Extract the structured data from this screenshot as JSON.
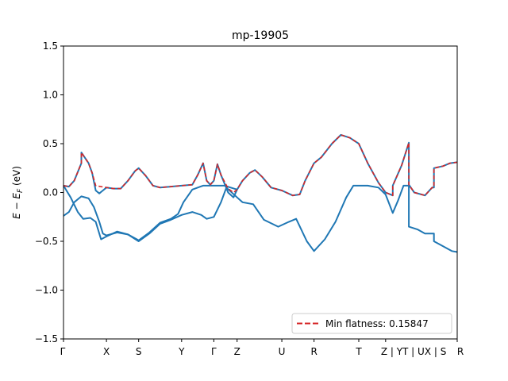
{
  "chart_data": {
    "type": "line",
    "title": "mp-19905",
    "xlabel": "",
    "ylabel": "E − E_F (eV)",
    "ylabel_main": "E − E",
    "ylabel_sub": "F",
    "ylabel_unit": " (eV)",
    "ylim": [
      -1.5,
      1.5
    ],
    "xlim": [
      0,
      11.0
    ],
    "yticks": [
      -1.5,
      -1.0,
      -0.5,
      0.0,
      0.5,
      1.0,
      1.5
    ],
    "ytick_labels": [
      "−1.5",
      "−1.0",
      "−0.5",
      "0.0",
      "0.5",
      "1.0",
      "1.5"
    ],
    "xticks": [
      {
        "x": 0.0,
        "label": "Γ"
      },
      {
        "x": 1.2,
        "label": "X"
      },
      {
        "x": 2.1,
        "label": "S"
      },
      {
        "x": 3.3,
        "label": "Y"
      },
      {
        "x": 4.2,
        "label": "Γ"
      },
      {
        "x": 4.85,
        "label": "Z"
      },
      {
        "x": 6.1,
        "label": "U"
      },
      {
        "x": 7.0,
        "label": "R"
      },
      {
        "x": 8.25,
        "label": "T"
      },
      {
        "x": 9.0,
        "label": "Z | YT | UX | S"
      },
      {
        "x": 11.0,
        "label": "R"
      }
    ],
    "series": [
      {
        "name": "",
        "color": "#1f77b4",
        "style": "solid",
        "points": [
          [
            0,
            0.07
          ],
          [
            0.15,
            0.06
          ],
          [
            0.3,
            0.12
          ],
          [
            0.5,
            0.3
          ],
          [
            0.5,
            0.41
          ],
          [
            0.7,
            0.3
          ],
          [
            0.8,
            0.2
          ],
          [
            0.9,
            0.02
          ],
          [
            1.0,
            -0.01
          ],
          [
            1.1,
            0.02
          ],
          [
            1.2,
            0.05
          ],
          [
            1.4,
            0.04
          ],
          [
            1.6,
            0.04
          ],
          [
            1.8,
            0.12
          ],
          [
            2.0,
            0.22
          ],
          [
            2.1,
            0.25
          ],
          [
            2.3,
            0.17
          ],
          [
            2.5,
            0.07
          ],
          [
            2.7,
            0.05
          ],
          [
            3.0,
            0.06
          ],
          [
            3.3,
            0.07
          ],
          [
            3.6,
            0.08
          ],
          [
            3.75,
            0.18
          ],
          [
            3.9,
            0.3
          ],
          [
            4.0,
            0.12
          ],
          [
            4.1,
            0.08
          ],
          [
            4.2,
            0.12
          ],
          [
            4.3,
            0.29
          ],
          [
            4.4,
            0.18
          ],
          [
            4.6,
            0.0
          ],
          [
            4.75,
            -0.05
          ],
          [
            4.85,
            0.03
          ],
          [
            5.0,
            0.12
          ],
          [
            5.2,
            0.2
          ],
          [
            5.35,
            0.23
          ],
          [
            5.55,
            0.16
          ],
          [
            5.8,
            0.05
          ],
          [
            6.1,
            0.02
          ],
          [
            6.4,
            -0.03
          ],
          [
            6.6,
            -0.02
          ],
          [
            6.75,
            0.12
          ],
          [
            7.0,
            0.3
          ],
          [
            7.2,
            0.36
          ],
          [
            7.5,
            0.5
          ],
          [
            7.75,
            0.59
          ],
          [
            8.0,
            0.56
          ],
          [
            8.25,
            0.5
          ],
          [
            8.5,
            0.3
          ],
          [
            8.8,
            0.1
          ],
          [
            9.0,
            0.0
          ],
          [
            9.2,
            -0.03
          ],
          [
            9.2,
            0.07
          ],
          [
            9.45,
            0.28
          ],
          [
            9.65,
            0.51
          ],
          [
            9.65,
            0.08
          ],
          [
            9.8,
            0.0
          ],
          [
            10.1,
            -0.03
          ],
          [
            10.3,
            0.05
          ],
          [
            10.35,
            0.05
          ],
          [
            10.35,
            0.25
          ],
          [
            10.6,
            0.27
          ],
          [
            10.8,
            0.3
          ],
          [
            11.0,
            0.31
          ]
        ]
      },
      {
        "name": "",
        "color": "#1f77b4",
        "style": "solid",
        "points": [
          [
            0,
            0.07
          ],
          [
            0.2,
            -0.05
          ],
          [
            0.4,
            -0.2
          ],
          [
            0.55,
            -0.27
          ],
          [
            0.75,
            -0.26
          ],
          [
            0.9,
            -0.3
          ],
          [
            1.05,
            -0.48
          ],
          [
            1.2,
            -0.45
          ],
          [
            1.5,
            -0.4
          ],
          [
            1.8,
            -0.43
          ],
          [
            2.1,
            -0.5
          ],
          [
            2.4,
            -0.42
          ],
          [
            2.7,
            -0.32
          ],
          [
            3.0,
            -0.28
          ],
          [
            3.3,
            -0.23
          ],
          [
            3.6,
            -0.2
          ],
          [
            3.85,
            -0.23
          ],
          [
            4.0,
            -0.27
          ],
          [
            4.2,
            -0.25
          ],
          [
            4.4,
            -0.1
          ],
          [
            4.55,
            0.05
          ],
          [
            4.85,
            -0.05
          ],
          [
            5.0,
            -0.1
          ],
          [
            5.3,
            -0.12
          ],
          [
            5.6,
            -0.28
          ],
          [
            6.0,
            -0.35
          ],
          [
            6.3,
            -0.3
          ],
          [
            6.5,
            -0.27
          ],
          [
            6.8,
            -0.5
          ],
          [
            7.0,
            -0.6
          ],
          [
            7.3,
            -0.48
          ],
          [
            7.6,
            -0.3
          ],
          [
            7.9,
            -0.05
          ],
          [
            8.1,
            0.07
          ],
          [
            8.5,
            0.07
          ],
          [
            8.8,
            0.05
          ],
          [
            9.0,
            -0.02
          ],
          [
            9.2,
            -0.21
          ],
          [
            9.35,
            -0.08
          ],
          [
            9.5,
            0.07
          ],
          [
            9.65,
            0.07
          ],
          [
            9.65,
            -0.35
          ],
          [
            9.9,
            -0.38
          ],
          [
            10.1,
            -0.42
          ],
          [
            10.35,
            -0.42
          ],
          [
            10.35,
            -0.5
          ],
          [
            10.6,
            -0.55
          ],
          [
            10.85,
            -0.6
          ],
          [
            11.0,
            -0.61
          ]
        ]
      },
      {
        "name": "",
        "color": "#1f77b4",
        "style": "solid",
        "points": [
          [
            0,
            -0.24
          ],
          [
            0.15,
            -0.2
          ],
          [
            0.3,
            -0.1
          ],
          [
            0.5,
            -0.04
          ],
          [
            0.7,
            -0.06
          ],
          [
            0.85,
            -0.15
          ],
          [
            1.0,
            -0.3
          ],
          [
            1.1,
            -0.42
          ],
          [
            1.2,
            -0.44
          ],
          [
            1.5,
            -0.41
          ],
          [
            1.8,
            -0.43
          ],
          [
            2.1,
            -0.49
          ],
          [
            2.4,
            -0.41
          ],
          [
            2.7,
            -0.31
          ],
          [
            3.0,
            -0.27
          ],
          [
            3.2,
            -0.22
          ],
          [
            3.35,
            -0.1
          ],
          [
            3.6,
            0.03
          ],
          [
            3.9,
            0.07
          ],
          [
            4.2,
            0.07
          ],
          [
            4.5,
            0.07
          ],
          [
            4.85,
            0.03
          ]
        ]
      },
      {
        "name": "Min flatness: 0.15847",
        "color": "#d62728",
        "style": "dashed",
        "points": [
          [
            0,
            0.07
          ],
          [
            0.15,
            0.06
          ],
          [
            0.3,
            0.12
          ],
          [
            0.5,
            0.3
          ],
          [
            0.5,
            0.41
          ],
          [
            0.7,
            0.3
          ],
          [
            0.8,
            0.2
          ],
          [
            0.9,
            0.07
          ],
          [
            1.05,
            0.06
          ],
          [
            1.2,
            0.05
          ],
          [
            1.4,
            0.04
          ],
          [
            1.6,
            0.04
          ],
          [
            1.8,
            0.12
          ],
          [
            2.0,
            0.22
          ],
          [
            2.1,
            0.25
          ],
          [
            2.3,
            0.17
          ],
          [
            2.5,
            0.07
          ],
          [
            2.7,
            0.05
          ],
          [
            3.0,
            0.06
          ],
          [
            3.3,
            0.07
          ],
          [
            3.6,
            0.08
          ],
          [
            3.75,
            0.18
          ],
          [
            3.9,
            0.3
          ],
          [
            4.0,
            0.12
          ],
          [
            4.1,
            0.08
          ],
          [
            4.2,
            0.12
          ],
          [
            4.3,
            0.29
          ],
          [
            4.4,
            0.18
          ],
          [
            4.6,
            0.04
          ],
          [
            4.75,
            0.0
          ],
          [
            4.85,
            0.03
          ],
          [
            5.0,
            0.12
          ],
          [
            5.2,
            0.2
          ],
          [
            5.35,
            0.23
          ],
          [
            5.55,
            0.16
          ],
          [
            5.8,
            0.05
          ],
          [
            6.1,
            0.02
          ],
          [
            6.4,
            -0.03
          ],
          [
            6.6,
            -0.02
          ],
          [
            6.75,
            0.12
          ],
          [
            7.0,
            0.3
          ],
          [
            7.2,
            0.36
          ],
          [
            7.5,
            0.5
          ],
          [
            7.75,
            0.59
          ],
          [
            8.0,
            0.56
          ],
          [
            8.25,
            0.5
          ],
          [
            8.5,
            0.3
          ],
          [
            8.8,
            0.1
          ],
          [
            9.0,
            0.0
          ],
          [
            9.2,
            -0.03
          ],
          [
            9.2,
            0.07
          ],
          [
            9.45,
            0.28
          ],
          [
            9.65,
            0.51
          ],
          [
            9.65,
            0.08
          ],
          [
            9.8,
            0.0
          ],
          [
            10.1,
            -0.03
          ],
          [
            10.3,
            0.05
          ],
          [
            10.35,
            0.05
          ],
          [
            10.35,
            0.25
          ],
          [
            10.6,
            0.27
          ],
          [
            10.8,
            0.3
          ],
          [
            11.0,
            0.31
          ]
        ]
      }
    ],
    "legend": {
      "position": "lower right",
      "label": "Min flatness: 0.15847",
      "color": "#d62728"
    },
    "grid": false
  }
}
